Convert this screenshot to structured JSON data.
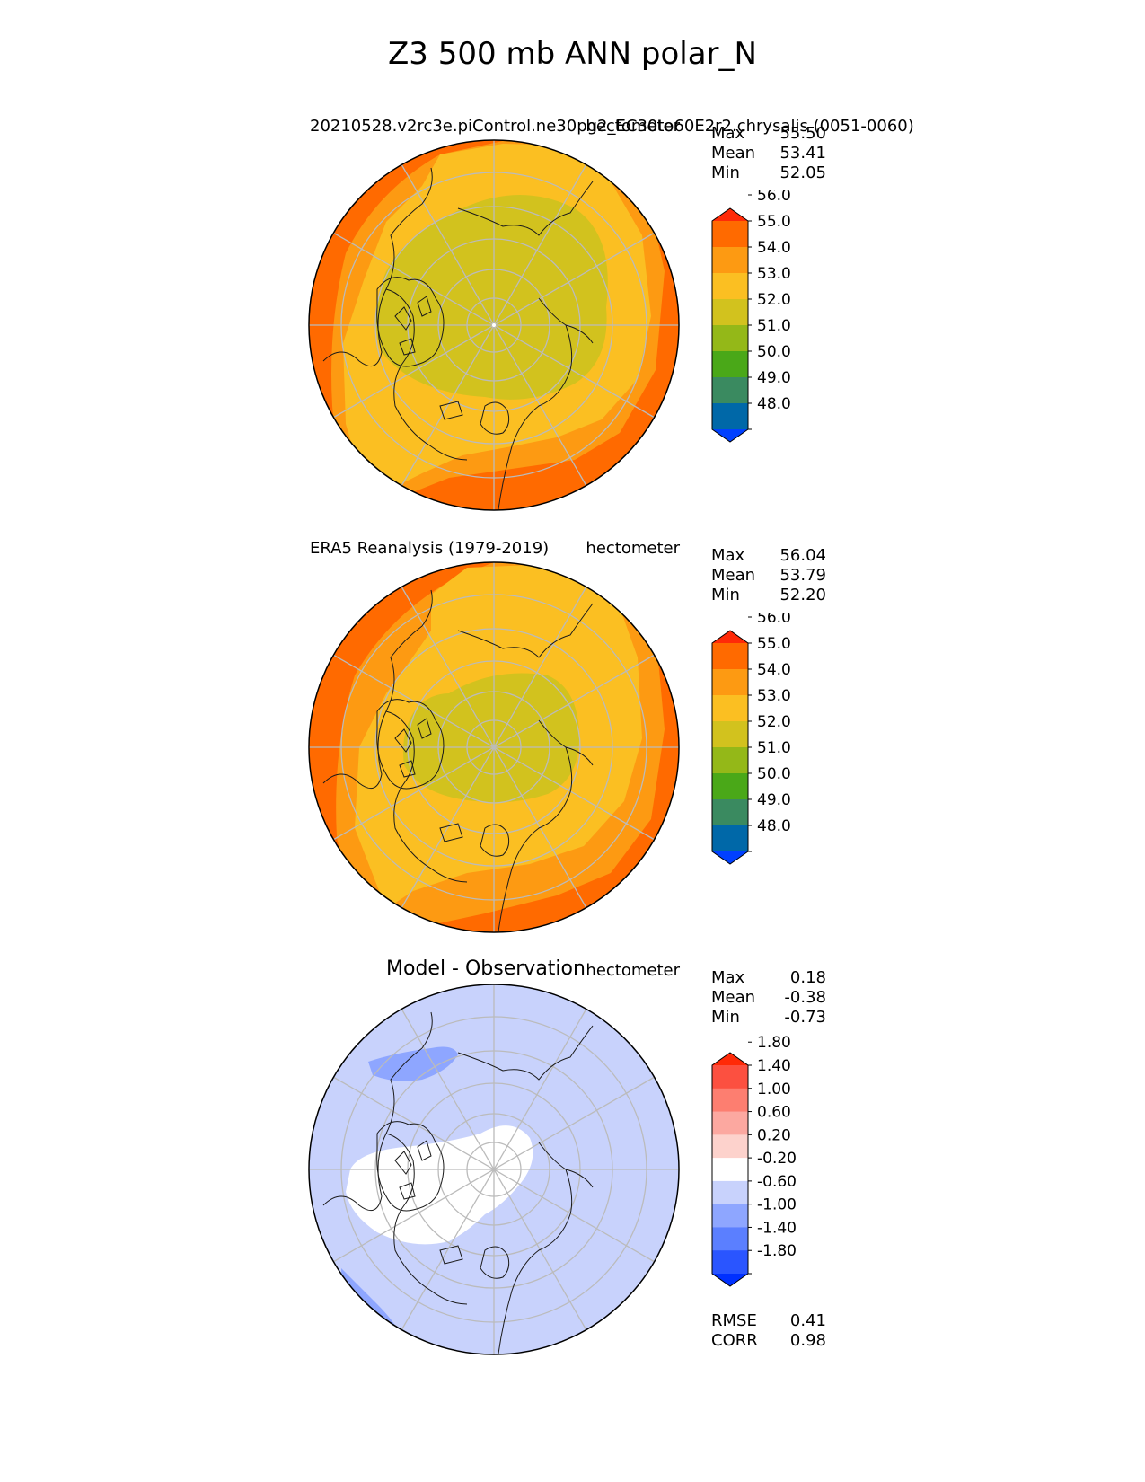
{
  "figure_title": "Z3 500 mb ANN polar_N",
  "colors": {
    "abs_levels": [
      "#0040ff",
      "#0068a8",
      "#3a8a60",
      "#4aa818",
      "#94b818",
      "#d2c21e",
      "#fbbf22",
      "#fd9a12",
      "#ff6a00",
      "#ff2a08"
    ],
    "diff_levels": [
      "#0030ff",
      "#2a55ff",
      "#5b7fff",
      "#8ea6ff",
      "#c8d2fc",
      "#ffffff",
      "#fdd2cc",
      "#fca8a0",
      "#fd7e70",
      "#fc5040",
      "#ff2a08"
    ],
    "gridlines": "#bbbbbb",
    "coastline": "#1a1a1a"
  },
  "chart_data": [
    {
      "type": "heatmap",
      "projection": "north polar stereographic",
      "title_left": "20210528.v2rc3e.piControl.ne30pg2_EC30to60E2r2.chrysalis (0051-0060)",
      "title_right": "hectometer",
      "stats": {
        "max_label": "Max",
        "max": "55.50",
        "mean_label": "Mean",
        "mean": "53.41",
        "min_label": "Min",
        "min": "52.05"
      },
      "colorbar": {
        "levels": [
          47.5,
          48,
          49,
          50,
          51,
          52,
          53,
          54,
          55,
          56,
          56.5
        ],
        "tick_labels": [
          "48.0",
          "49.0",
          "50.0",
          "51.0",
          "52.0",
          "53.0",
          "54.0",
          "55.0",
          "56.0"
        ],
        "extend": "both"
      },
      "field_regions": [
        {
          "value": 55.5,
          "level_index": 8
        },
        {
          "value": 54.5,
          "level_index": 7
        },
        {
          "value": 53.5,
          "level_index": 6
        },
        {
          "value": 52.5,
          "level_index": 5
        }
      ]
    },
    {
      "type": "heatmap",
      "projection": "north polar stereographic",
      "title_left": "ERA5 Reanalysis (1979-2019)",
      "title_right": "hectometer",
      "stats": {
        "max_label": "Max",
        "max": "56.04",
        "mean_label": "Mean",
        "mean": "53.79",
        "min_label": "Min",
        "min": "52.20"
      },
      "colorbar": {
        "levels": [
          47.5,
          48,
          49,
          50,
          51,
          52,
          53,
          54,
          55,
          56,
          56.5
        ],
        "tick_labels": [
          "48.0",
          "49.0",
          "50.0",
          "51.0",
          "52.0",
          "53.0",
          "54.0",
          "55.0",
          "56.0"
        ],
        "extend": "both"
      },
      "field_regions": [
        {
          "value": 55.5,
          "level_index": 8
        },
        {
          "value": 54.5,
          "level_index": 7
        },
        {
          "value": 53.5,
          "level_index": 6
        },
        {
          "value": 52.5,
          "level_index": 5
        }
      ]
    },
    {
      "type": "heatmap",
      "projection": "north polar stereographic",
      "title_center": "Model - Observation",
      "title_right": "hectometer",
      "stats": {
        "max_label": "Max",
        "max": "0.18",
        "mean_label": "Mean",
        "mean": "-0.38",
        "min_label": "Min",
        "min": "-0.73"
      },
      "colorbar": {
        "levels": [
          -2.2,
          -1.8,
          -1.4,
          -1.0,
          -0.6,
          -0.2,
          0.2,
          0.6,
          1.0,
          1.4,
          1.8,
          2.2
        ],
        "tick_labels": [
          "-1.80",
          "-1.40",
          "-1.00",
          "-0.60",
          "-0.20",
          "0.20",
          "0.60",
          "1.00",
          "1.40",
          "1.80"
        ],
        "extend": "both"
      },
      "metrics": {
        "rmse_label": "RMSE",
        "rmse": "0.41",
        "corr_label": "CORR",
        "corr": "0.98"
      },
      "field_regions": [
        {
          "value": -0.4,
          "level_index": 4
        },
        {
          "value": 0.0,
          "level_index": 5
        },
        {
          "value": -0.8,
          "level_index": 3
        }
      ]
    }
  ]
}
